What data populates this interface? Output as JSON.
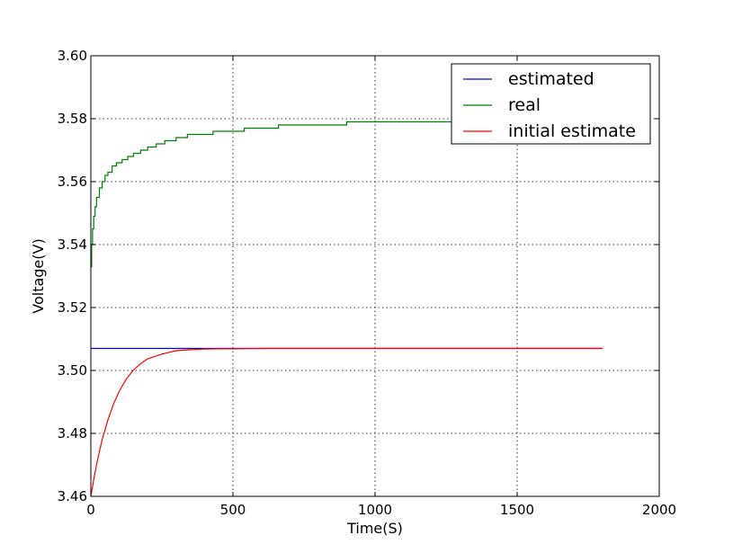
{
  "chart_data": {
    "type": "line",
    "xlabel": "Time(S)",
    "ylabel": "Voltage(V)",
    "xlim": [
      0,
      2000
    ],
    "ylim": [
      3.46,
      3.6
    ],
    "xticks": [
      0,
      500,
      1000,
      1500,
      2000
    ],
    "xtick_labels": [
      "0",
      "500",
      "1000",
      "1500",
      "2000"
    ],
    "yticks": [
      3.46,
      3.48,
      3.5,
      3.52,
      3.54,
      3.56,
      3.58,
      3.6
    ],
    "ytick_labels": [
      "3.46",
      "3.48",
      "3.50",
      "3.52",
      "3.54",
      "3.56",
      "3.58",
      "3.60"
    ],
    "grid": true,
    "legend_position": "top-right",
    "series": [
      {
        "name": "estimated",
        "color": "#0000ff",
        "x": [
          0,
          1800
        ],
        "y": [
          3.507,
          3.507
        ]
      },
      {
        "name": "real",
        "color": "#008000",
        "x": [
          0,
          3,
          6,
          10,
          15,
          20,
          30,
          40,
          50,
          60,
          75,
          90,
          110,
          130,
          150,
          175,
          200,
          230,
          260,
          300,
          340,
          380,
          430,
          480,
          540,
          600,
          660,
          720,
          800,
          900,
          1000,
          1100,
          1200,
          1300,
          1400,
          1500,
          1600,
          1700,
          1800
        ],
        "y": [
          3.533,
          3.54,
          3.545,
          3.549,
          3.552,
          3.555,
          3.558,
          3.56,
          3.562,
          3.563,
          3.565,
          3.566,
          3.567,
          3.568,
          3.569,
          3.57,
          3.571,
          3.572,
          3.573,
          3.574,
          3.575,
          3.575,
          3.576,
          3.576,
          3.577,
          3.577,
          3.578,
          3.578,
          3.578,
          3.579,
          3.579,
          3.579,
          3.579,
          3.579,
          3.58,
          3.58,
          3.58,
          3.58,
          3.58
        ]
      },
      {
        "name": "initial estimate",
        "color": "#ff0000",
        "x": [
          0,
          10,
          20,
          30,
          40,
          60,
          80,
          100,
          125,
          150,
          175,
          200,
          250,
          300,
          350,
          400,
          450,
          500,
          600,
          700,
          800,
          1000,
          1200,
          1500,
          1800
        ],
        "y": [
          3.46,
          3.4653,
          3.47,
          3.4742,
          3.478,
          3.4843,
          3.4894,
          3.4934,
          3.4973,
          3.5001,
          3.5022,
          3.5037,
          3.5052,
          3.5063,
          3.5066,
          3.5068,
          3.5069,
          3.5069,
          3.507,
          3.507,
          3.507,
          3.507,
          3.507,
          3.507,
          3.507
        ]
      }
    ]
  }
}
